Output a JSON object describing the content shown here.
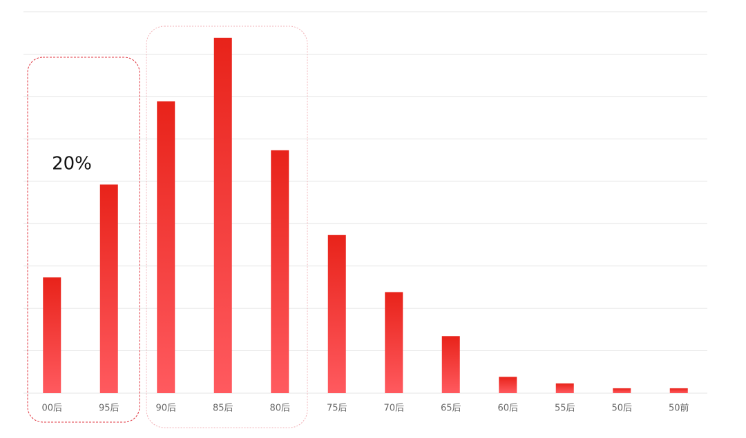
{
  "chart_data": {
    "type": "bar",
    "annotation": "20%",
    "categories": [
      "00后",
      "95后",
      "90后",
      "85后",
      "80后",
      "75后",
      "70后",
      "65后",
      "60后",
      "55后",
      "50后",
      "50前"
    ],
    "values": [
      7.1,
      12.8,
      17.9,
      21.8,
      14.9,
      9.7,
      6.2,
      3.5,
      1.0,
      0.6,
      0.3,
      0.3
    ],
    "color": "#ee2a1f",
    "ylim": [
      0,
      23.4
    ],
    "yticks": [
      0,
      2.6,
      5.2,
      7.8,
      10.4,
      13,
      15.6,
      18.2,
      20.8,
      23.4
    ],
    "grid": true
  }
}
